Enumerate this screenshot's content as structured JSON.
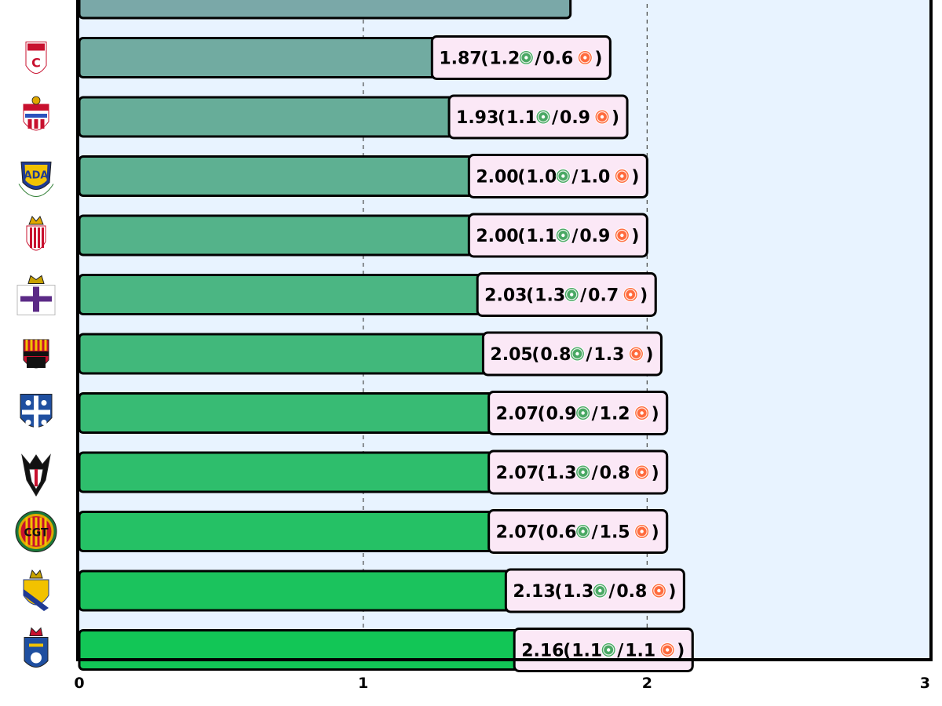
{
  "chart_data": {
    "type": "bar",
    "orientation": "horizontal",
    "title": "",
    "xlabel": "",
    "ylabel": "",
    "xlim": [
      0,
      3
    ],
    "x_ticks": [
      "0",
      "1",
      "2",
      "3"
    ],
    "grid": "vertical dashed",
    "colors": {
      "background": "#e8f3ff",
      "bar_low": "#7aa8a8",
      "bar_high": "#12c656",
      "label_bg": "#fbe8f6",
      "green_ball": "#4aa864",
      "red_ball": "#ff6b3d"
    },
    "series": [
      {
        "values": [
          1.73,
          1.87,
          1.93,
          2.0,
          2.0,
          2.03,
          2.05,
          2.07,
          2.07,
          2.07,
          2.13,
          2.16
        ]
      }
    ],
    "bars": [
      {
        "value": 1.73,
        "label": null,
        "logo": "partial-crest-icon"
      },
      {
        "value": 1.87,
        "total": "1.87",
        "a": "1.2",
        "b": "0.6",
        "logo": "granada-crest-icon"
      },
      {
        "value": 1.93,
        "total": "1.93",
        "a": "1.1",
        "b": "0.9",
        "logo": "almeria-crest-icon"
      },
      {
        "value": 2.0,
        "total": "2.00",
        "a": "1.0",
        "b": "1.0",
        "logo": "alcorcon-crest-icon"
      },
      {
        "value": 2.0,
        "total": "2.00",
        "a": "1.1",
        "b": "0.9",
        "logo": "sporting-crest-icon"
      },
      {
        "value": 2.03,
        "total": "2.03",
        "a": "1.3",
        "b": "0.7",
        "logo": "deportivo-crest-icon"
      },
      {
        "value": 2.05,
        "total": "2.05",
        "a": "0.8",
        "b": "1.3",
        "logo": "reus-crest-icon"
      },
      {
        "value": 2.07,
        "total": "2.07",
        "a": "0.9",
        "b": "1.2",
        "logo": "tenerife-crest-icon"
      },
      {
        "value": 2.07,
        "total": "2.07",
        "a": "1.3",
        "b": "0.8",
        "logo": "albacete-crest-icon"
      },
      {
        "value": 2.07,
        "total": "2.07",
        "a": "0.6",
        "b": "1.5",
        "logo": "nastic-crest-icon"
      },
      {
        "value": 2.13,
        "total": "2.13",
        "a": "1.3",
        "b": "0.8",
        "logo": "cadiz-crest-icon"
      },
      {
        "value": 2.16,
        "total": "2.16",
        "a": "1.1",
        "b": "1.1",
        "logo": "oviedo-crest-icon"
      }
    ]
  }
}
